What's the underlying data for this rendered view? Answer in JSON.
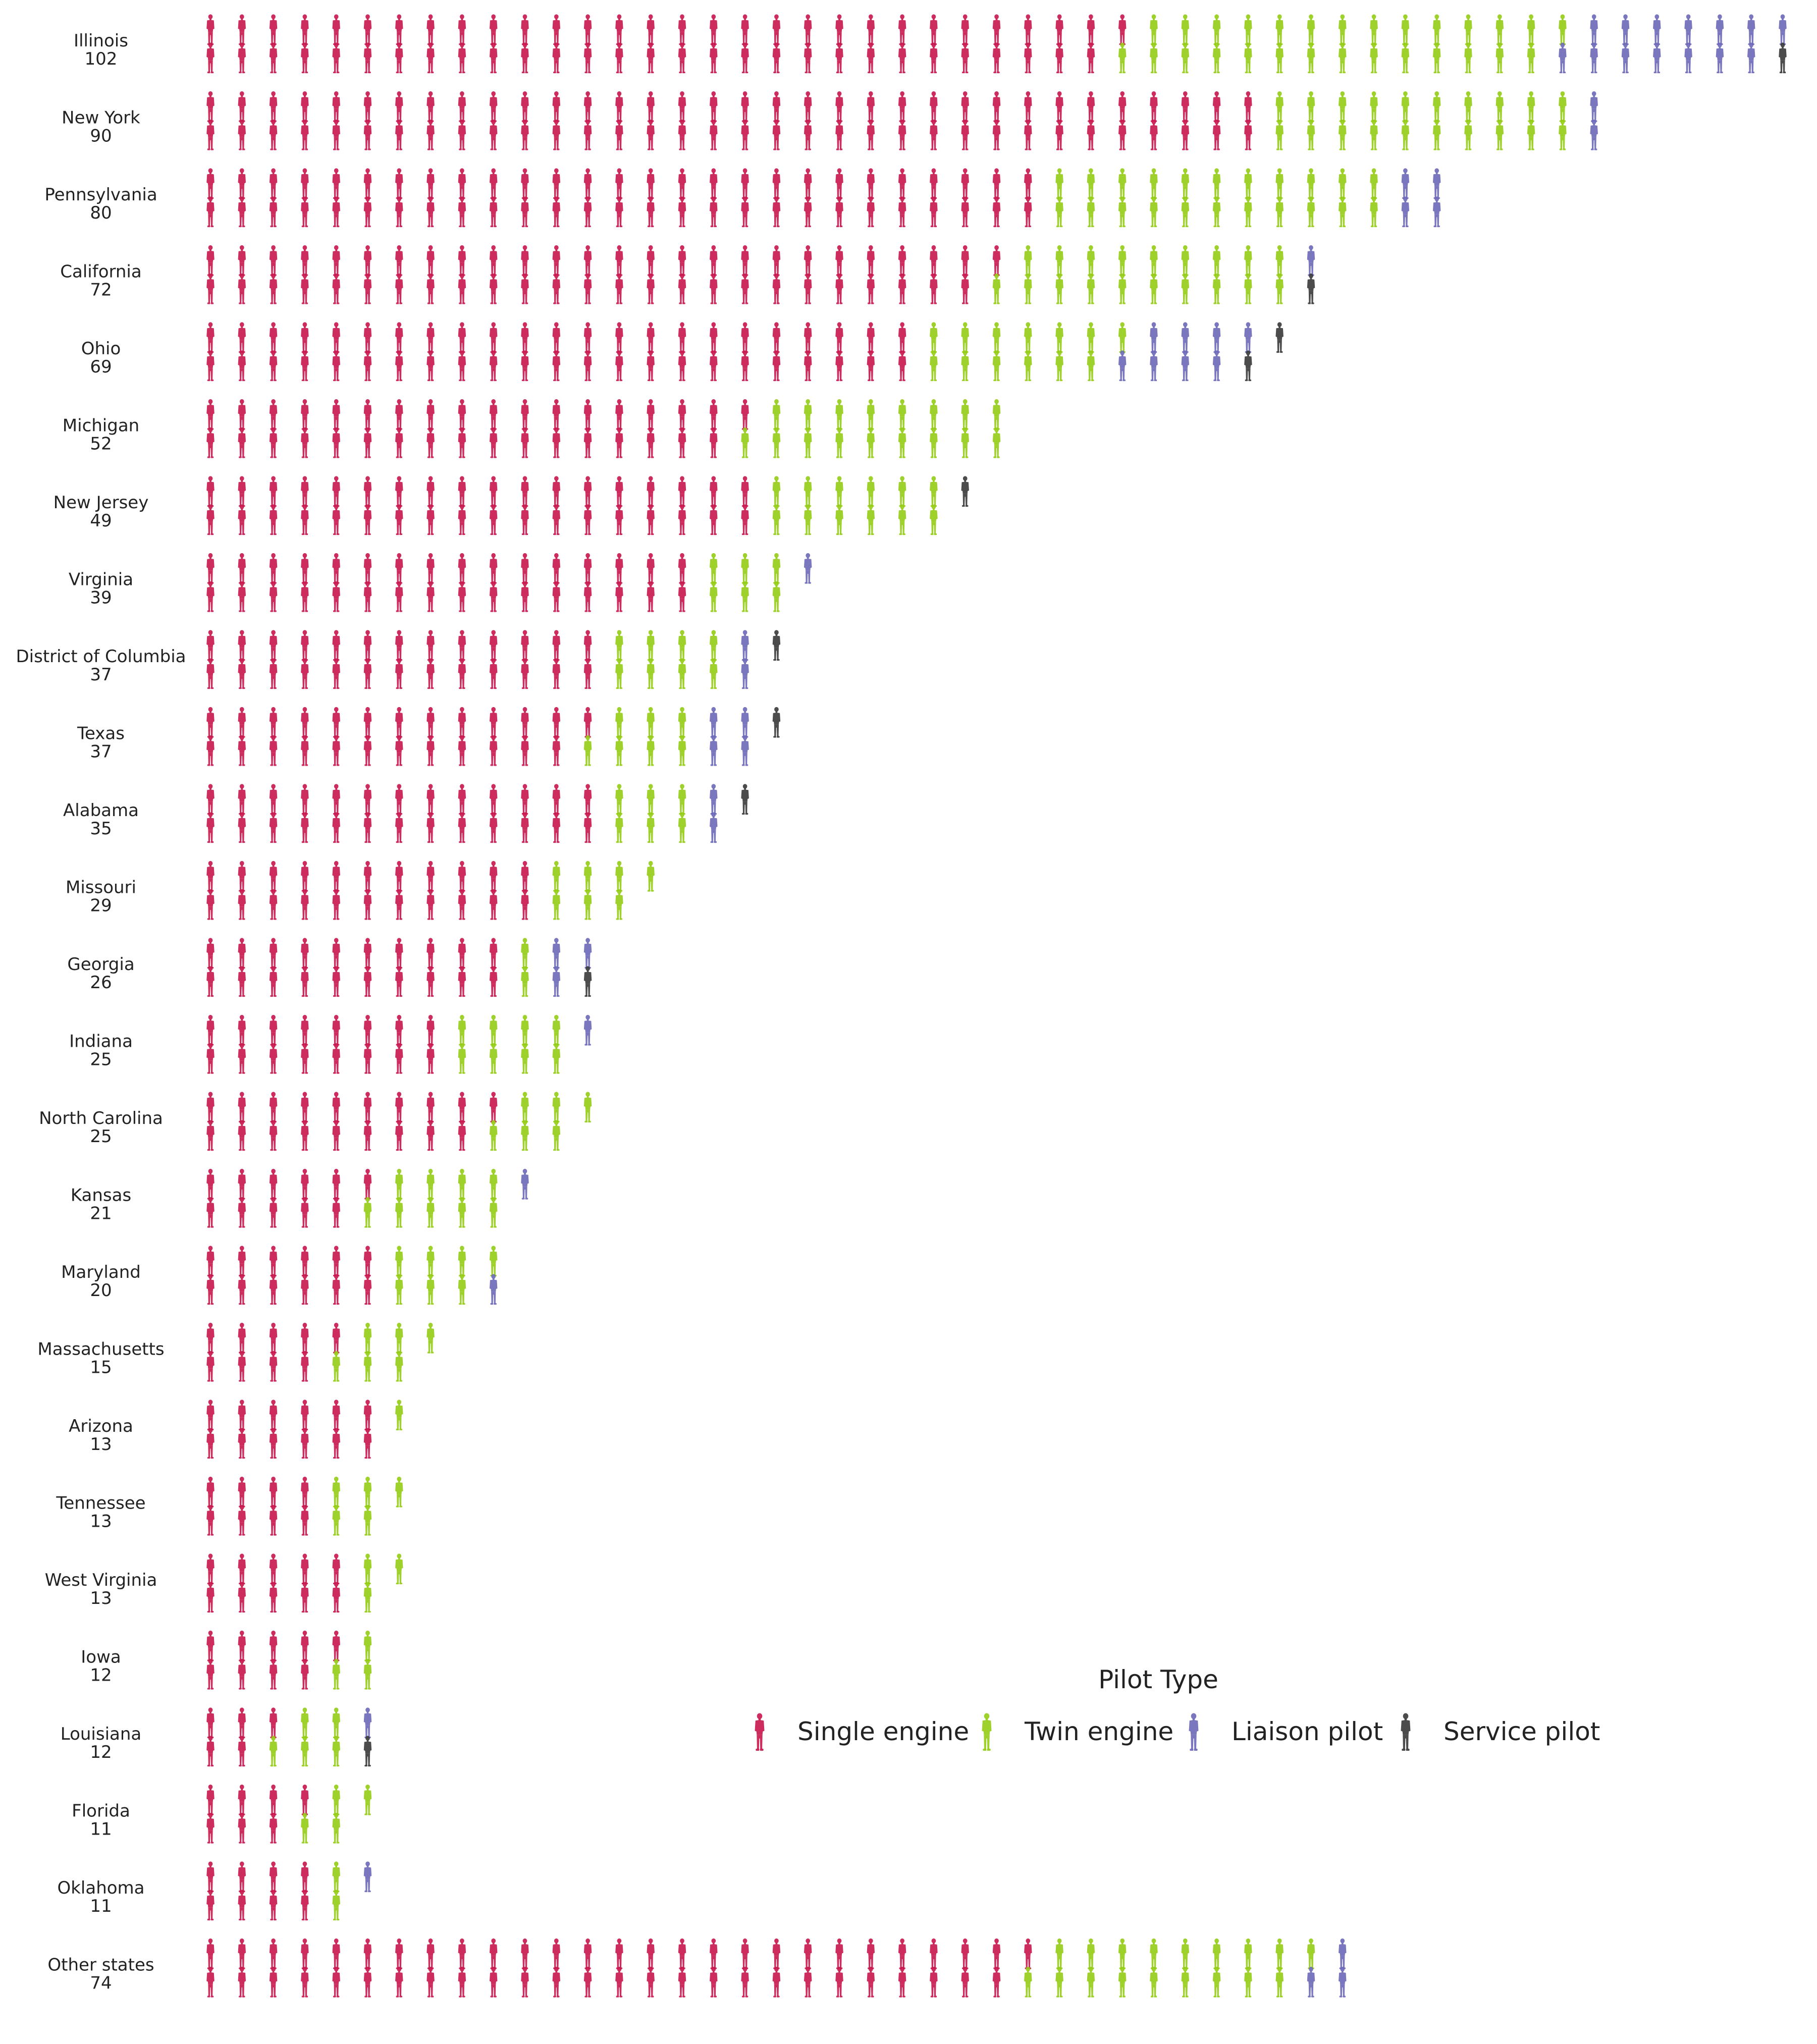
{
  "chart_data": {
    "type": "pictogram",
    "title": "",
    "legend": {
      "title": "Pilot Type",
      "placement": "bottom-right",
      "entries": [
        {
          "name": "Single engine",
          "color": "#C8164C"
        },
        {
          "name": "Twin engine",
          "color": "#94CC14"
        },
        {
          "name": "Liaison pilot",
          "color": "#6C68B8"
        },
        {
          "name": "Service pilot",
          "color": "#383838"
        }
      ]
    },
    "units_per_icon": 2,
    "rows": [
      {
        "state": "Illinois",
        "total": "102",
        "counts": [
          59,
          28,
          14,
          1
        ]
      },
      {
        "state": "New York",
        "total": "90",
        "counts": [
          68,
          20,
          2,
          0
        ]
      },
      {
        "state": "Pennsylvania",
        "total": "80",
        "counts": [
          54,
          22,
          4,
          0
        ]
      },
      {
        "state": "California",
        "total": "72",
        "counts": [
          51,
          19,
          1,
          1
        ]
      },
      {
        "state": "Ohio",
        "total": "69",
        "counts": [
          46,
          13,
          8,
          2
        ]
      },
      {
        "state": "Michigan",
        "total": "52",
        "counts": [
          35,
          17,
          0,
          0
        ]
      },
      {
        "state": "New Jersey",
        "total": "49",
        "counts": [
          36,
          12,
          0,
          1
        ]
      },
      {
        "state": "Virginia",
        "total": "39",
        "counts": [
          32,
          6,
          1,
          0
        ]
      },
      {
        "state": "District of Columbia",
        "total": "37",
        "counts": [
          26,
          8,
          2,
          1
        ]
      },
      {
        "state": "Texas",
        "total": "37",
        "counts": [
          25,
          7,
          4,
          1
        ]
      },
      {
        "state": "Alabama",
        "total": "35",
        "counts": [
          26,
          6,
          2,
          1
        ]
      },
      {
        "state": "Missouri",
        "total": "29",
        "counts": [
          22,
          7,
          0,
          0
        ]
      },
      {
        "state": "Georgia",
        "total": "26",
        "counts": [
          20,
          2,
          3,
          1
        ]
      },
      {
        "state": "Indiana",
        "total": "25",
        "counts": [
          16,
          8,
          1,
          0
        ]
      },
      {
        "state": "North Carolina",
        "total": "25",
        "counts": [
          19,
          6,
          0,
          0
        ]
      },
      {
        "state": "Kansas",
        "total": "21",
        "counts": [
          11,
          9,
          1,
          0
        ]
      },
      {
        "state": "Maryland",
        "total": "20",
        "counts": [
          12,
          7,
          1,
          0
        ]
      },
      {
        "state": "Massachusetts",
        "total": "15",
        "counts": [
          9,
          6,
          0,
          0
        ]
      },
      {
        "state": "Arizona",
        "total": "13",
        "counts": [
          12,
          1,
          0,
          0
        ]
      },
      {
        "state": "Tennessee",
        "total": "13",
        "counts": [
          8,
          5,
          0,
          0
        ]
      },
      {
        "state": "West Virginia",
        "total": "13",
        "counts": [
          10,
          3,
          0,
          0
        ]
      },
      {
        "state": "Iowa",
        "total": "12",
        "counts": [
          9,
          3,
          0,
          0
        ]
      },
      {
        "state": "Louisiana",
        "total": "12",
        "counts": [
          5,
          5,
          1,
          1
        ]
      },
      {
        "state": "Florida",
        "total": "11",
        "counts": [
          7,
          4,
          0,
          0
        ]
      },
      {
        "state": "Oklahoma",
        "total": "11",
        "counts": [
          8,
          2,
          1,
          0
        ]
      },
      {
        "state": "Other states",
        "total": "74",
        "counts": [
          53,
          18,
          3,
          0
        ]
      }
    ]
  }
}
